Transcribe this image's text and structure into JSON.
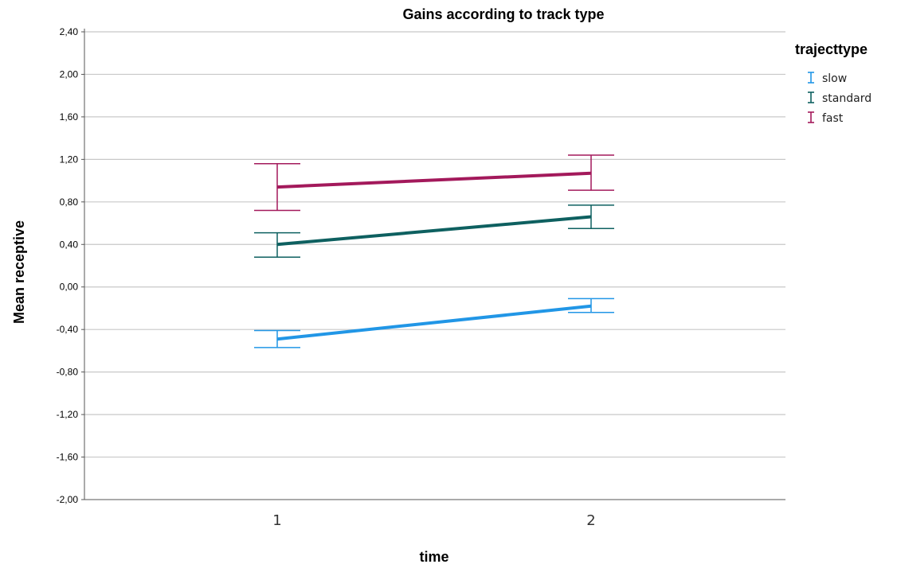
{
  "chart_data": {
    "type": "line",
    "title": "Gains according to track type",
    "xlabel": "time",
    "ylabel": "Mean receptive",
    "categories": [
      "1",
      "2"
    ],
    "y_ticks": [
      "2,40",
      "2,00",
      "1,60",
      "1,20",
      "0,80",
      "0,40",
      "0,00",
      "-0,40",
      "-0,80",
      "-1,20",
      "-1,60",
      "-2,00"
    ],
    "ylim": [
      -2.0,
      2.4
    ],
    "grid": "horizontal",
    "legend": {
      "title": "trajecttype",
      "placement": "right"
    },
    "series": [
      {
        "name": "slow",
        "color": "#2196e6",
        "values": [
          -0.49,
          -0.18
        ],
        "error_low": [
          -0.57,
          -0.24
        ],
        "error_high": [
          -0.41,
          -0.11
        ]
      },
      {
        "name": "standard",
        "color": "#0e6060",
        "values": [
          0.4,
          0.66
        ],
        "error_low": [
          0.28,
          0.55
        ],
        "error_high": [
          0.51,
          0.77
        ]
      },
      {
        "name": "fast",
        "color": "#a3195b",
        "values": [
          0.94,
          1.07
        ],
        "error_low": [
          0.72,
          0.91
        ],
        "error_high": [
          1.16,
          1.24
        ]
      }
    ]
  }
}
